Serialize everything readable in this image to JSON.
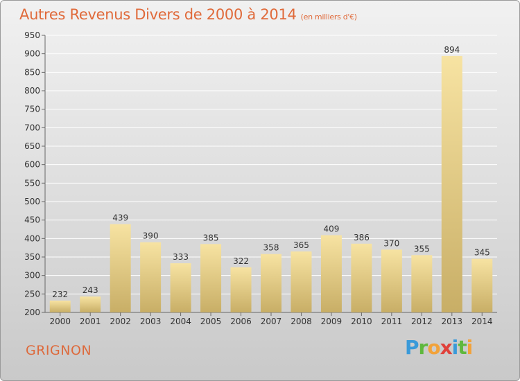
{
  "header": {
    "title": "Autres Revenus Divers de 2000 à 2014",
    "subtitle": "(en milliers d'€)"
  },
  "footer": {
    "commune": "GRIGNON",
    "brand": "Proxiti"
  },
  "colors": {
    "title": "#e06a3a",
    "bar_light": "#f7e3a2",
    "bar_dark": "#c8ae66",
    "grid": "#ffffff"
  },
  "chart_data": {
    "type": "bar",
    "title": "Autres Revenus Divers de 2000 à 2014",
    "subtitle": "(en milliers d'€)",
    "xlabel": "",
    "ylabel": "",
    "categories": [
      "2000",
      "2001",
      "2002",
      "2003",
      "2004",
      "2005",
      "2006",
      "2007",
      "2008",
      "2009",
      "2010",
      "2011",
      "2012",
      "2013",
      "2014"
    ],
    "values": [
      232,
      243,
      439,
      390,
      333,
      385,
      322,
      358,
      365,
      409,
      386,
      370,
      355,
      894,
      345
    ],
    "ylim": [
      200,
      950
    ],
    "yticks": [
      200,
      250,
      300,
      350,
      400,
      450,
      500,
      550,
      600,
      650,
      700,
      750,
      800,
      850,
      900,
      950
    ],
    "grid": true,
    "legend": "none"
  }
}
